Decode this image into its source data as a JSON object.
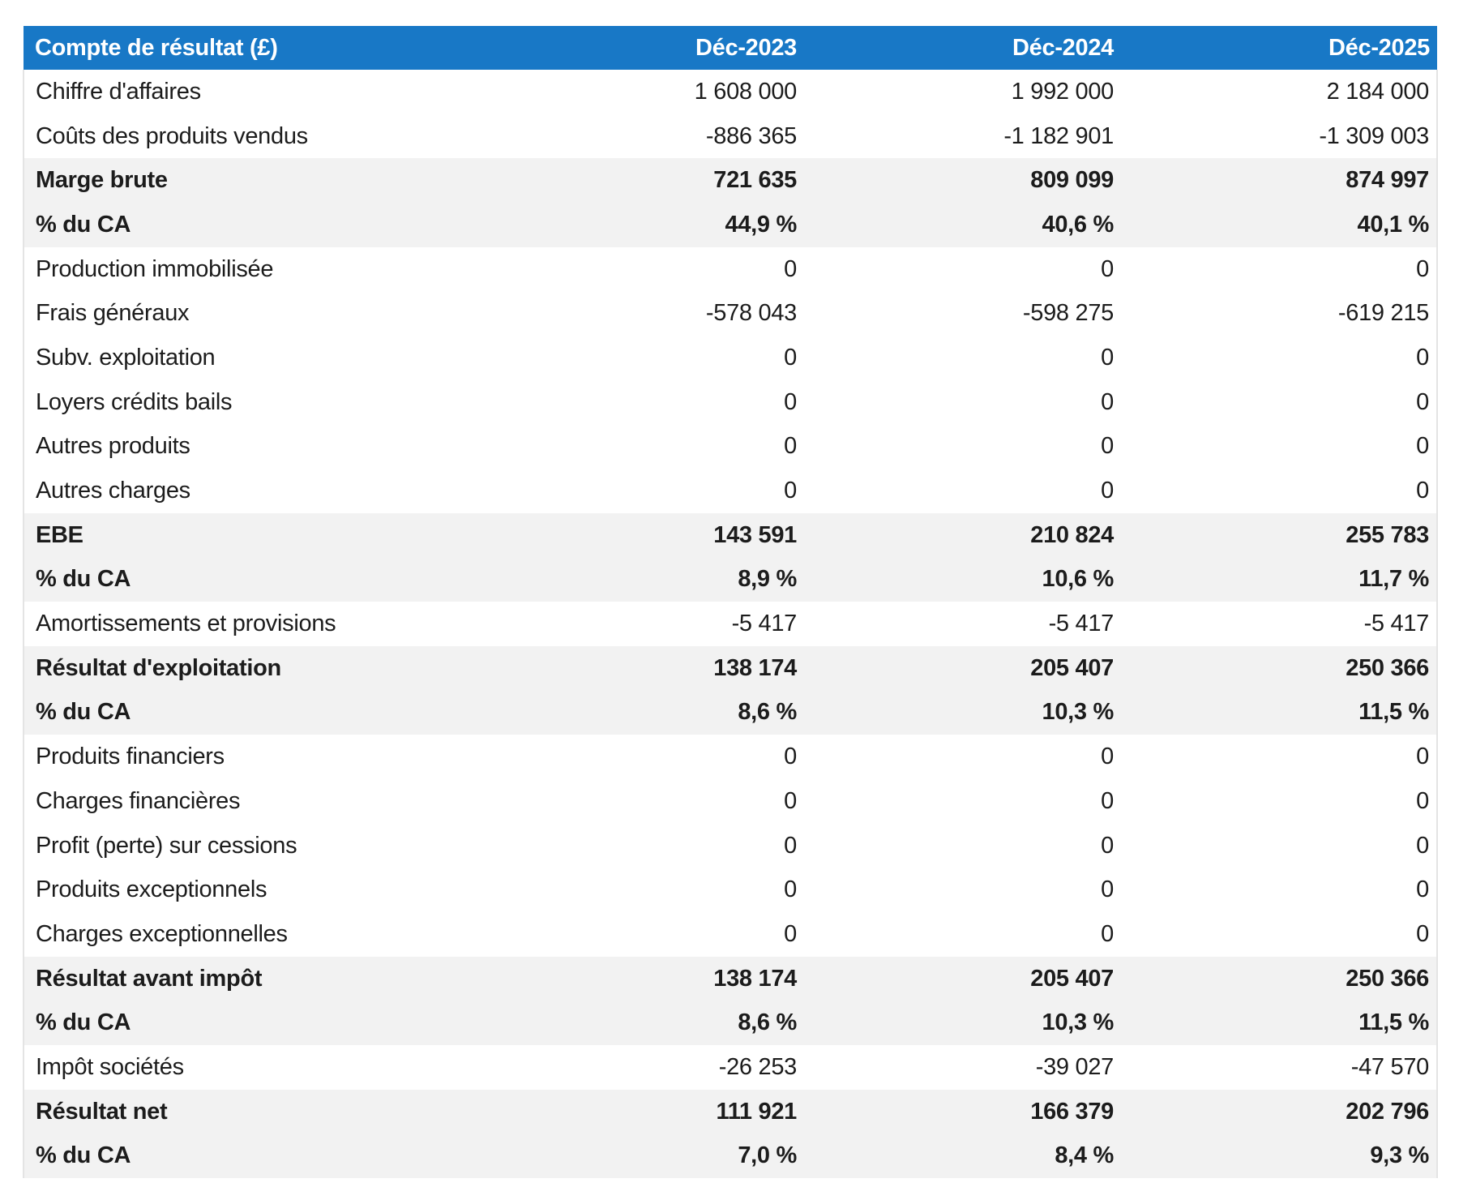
{
  "colors": {
    "header_bg": "#1878c6",
    "header_text": "#ffffff",
    "subtotal_row_bg": "#f2f2f2",
    "row_bg": "#ffffff",
    "text": "#1c1c1c",
    "side_border": "#e4e4e4"
  },
  "chart_data": {
    "type": "table",
    "title": "Compte de résultat (£)",
    "columns": [
      "Déc-2023",
      "Déc-2024",
      "Déc-2025"
    ],
    "legend_position": "none",
    "grid": false,
    "rows": [
      {
        "label": "Chiffre d'affaires",
        "values": [
          "1 608 000",
          "1 992 000",
          "2 184 000"
        ],
        "numeric": [
          1608000,
          1992000,
          2184000
        ],
        "bold": false
      },
      {
        "label": "Coûts des produits vendus",
        "values": [
          "-886 365",
          "-1 182 901",
          "-1 309 003"
        ],
        "numeric": [
          -886365,
          -1182901,
          -1309003
        ],
        "bold": false
      },
      {
        "label": "Marge brute",
        "values": [
          "721 635",
          "809 099",
          "874 997"
        ],
        "numeric": [
          721635,
          809099,
          874997
        ],
        "bold": true
      },
      {
        "label": "% du CA",
        "values": [
          "44,9 %",
          "40,6 %",
          "40,1 %"
        ],
        "numeric": [
          44.9,
          40.6,
          40.1
        ],
        "bold": true
      },
      {
        "label": "Production immobilisée",
        "values": [
          "0",
          "0",
          "0"
        ],
        "numeric": [
          0,
          0,
          0
        ],
        "bold": false
      },
      {
        "label": "Frais généraux",
        "values": [
          "-578 043",
          "-598 275",
          "-619 215"
        ],
        "numeric": [
          -578043,
          -598275,
          -619215
        ],
        "bold": false
      },
      {
        "label": "Subv. exploitation",
        "values": [
          "0",
          "0",
          "0"
        ],
        "numeric": [
          0,
          0,
          0
        ],
        "bold": false
      },
      {
        "label": "Loyers crédits bails",
        "values": [
          "0",
          "0",
          "0"
        ],
        "numeric": [
          0,
          0,
          0
        ],
        "bold": false
      },
      {
        "label": "Autres produits",
        "values": [
          "0",
          "0",
          "0"
        ],
        "numeric": [
          0,
          0,
          0
        ],
        "bold": false
      },
      {
        "label": "Autres charges",
        "values": [
          "0",
          "0",
          "0"
        ],
        "numeric": [
          0,
          0,
          0
        ],
        "bold": false
      },
      {
        "label": "EBE",
        "values": [
          "143 591",
          "210 824",
          "255 783"
        ],
        "numeric": [
          143591,
          210824,
          255783
        ],
        "bold": true
      },
      {
        "label": "% du CA",
        "values": [
          "8,9 %",
          "10,6 %",
          "11,7 %"
        ],
        "numeric": [
          8.9,
          10.6,
          11.7
        ],
        "bold": true
      },
      {
        "label": "Amortissements et provisions",
        "values": [
          "-5 417",
          "-5 417",
          "-5 417"
        ],
        "numeric": [
          -5417,
          -5417,
          -5417
        ],
        "bold": false
      },
      {
        "label": "Résultat d'exploitation",
        "values": [
          "138 174",
          "205 407",
          "250 366"
        ],
        "numeric": [
          138174,
          205407,
          250366
        ],
        "bold": true
      },
      {
        "label": "% du CA",
        "values": [
          "8,6 %",
          "10,3 %",
          "11,5 %"
        ],
        "numeric": [
          8.6,
          10.3,
          11.5
        ],
        "bold": true
      },
      {
        "label": "Produits financiers",
        "values": [
          "0",
          "0",
          "0"
        ],
        "numeric": [
          0,
          0,
          0
        ],
        "bold": false
      },
      {
        "label": "Charges financières",
        "values": [
          "0",
          "0",
          "0"
        ],
        "numeric": [
          0,
          0,
          0
        ],
        "bold": false
      },
      {
        "label": "Profit (perte) sur cessions",
        "values": [
          "0",
          "0",
          "0"
        ],
        "numeric": [
          0,
          0,
          0
        ],
        "bold": false
      },
      {
        "label": "Produits exceptionnels",
        "values": [
          "0",
          "0",
          "0"
        ],
        "numeric": [
          0,
          0,
          0
        ],
        "bold": false
      },
      {
        "label": "Charges exceptionnelles",
        "values": [
          "0",
          "0",
          "0"
        ],
        "numeric": [
          0,
          0,
          0
        ],
        "bold": false
      },
      {
        "label": "Résultat avant impôt",
        "values": [
          "138 174",
          "205 407",
          "250 366"
        ],
        "numeric": [
          138174,
          205407,
          250366
        ],
        "bold": true
      },
      {
        "label": "% du CA",
        "values": [
          "8,6 %",
          "10,3 %",
          "11,5 %"
        ],
        "numeric": [
          8.6,
          10.3,
          11.5
        ],
        "bold": true
      },
      {
        "label": "Impôt sociétés",
        "values": [
          "-26 253",
          "-39 027",
          "-47 570"
        ],
        "numeric": [
          -26253,
          -39027,
          -47570
        ],
        "bold": false
      },
      {
        "label": "Résultat net",
        "values": [
          "111 921",
          "166 379",
          "202 796"
        ],
        "numeric": [
          111921,
          166379,
          202796
        ],
        "bold": true
      },
      {
        "label": "% du CA",
        "values": [
          "7,0 %",
          "8,4 %",
          "9,3 %"
        ],
        "numeric": [
          7.0,
          8.4,
          9.3
        ],
        "bold": true
      }
    ]
  }
}
